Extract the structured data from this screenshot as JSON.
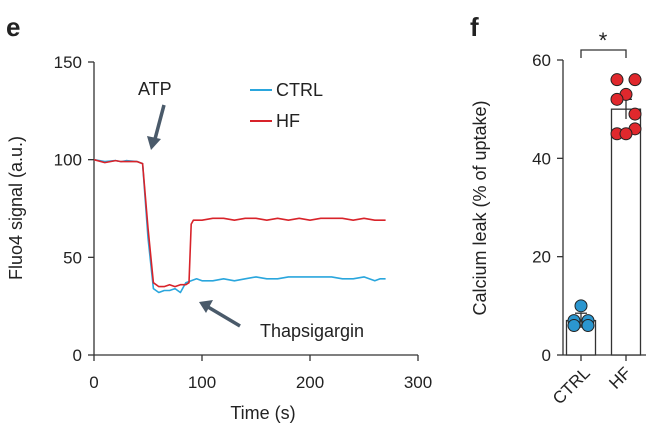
{
  "panels": {
    "left_letter": "e",
    "right_letter": "f"
  },
  "colors": {
    "ctrl": "#2aa6dd",
    "hf": "#d8232a",
    "ctrl_dot_fill": "#2b96cf",
    "hf_dot_fill": "#e0282d",
    "axis": "#333333",
    "arrow": "#4a5a6a"
  },
  "annotations": {
    "atp": "ATP",
    "thapsigargin": "Thapsigargin",
    "significance": "*"
  },
  "chart_data": [
    {
      "type": "line",
      "xlabel": "Time (s)",
      "ylabel": "Fluo4 signal (a.u.)",
      "xlim": [
        0,
        300
      ],
      "ylim": [
        0,
        150
      ],
      "xticks": [
        0,
        100,
        200,
        300
      ],
      "yticks": [
        0,
        50,
        100,
        150
      ],
      "legend_position": "top-right",
      "series": [
        {
          "name": "CTRL",
          "x": [
            0,
            10,
            20,
            25,
            30,
            40,
            45,
            50,
            55,
            60,
            65,
            70,
            75,
            80,
            85,
            90,
            95,
            100,
            110,
            120,
            130,
            140,
            150,
            160,
            170,
            180,
            190,
            200,
            210,
            220,
            230,
            240,
            250,
            260,
            265,
            270
          ],
          "y": [
            100,
            99,
            99.5,
            99,
            99.5,
            99,
            98,
            60,
            34,
            32,
            33,
            33,
            34,
            32,
            37,
            38,
            39,
            38,
            38,
            39,
            38,
            39,
            40,
            39,
            39,
            40,
            40,
            40,
            40,
            40,
            39,
            39,
            40,
            38,
            39,
            39
          ]
        },
        {
          "name": "HF",
          "x": [
            0,
            10,
            20,
            25,
            30,
            40,
            45,
            50,
            55,
            60,
            65,
            70,
            75,
            80,
            85,
            88,
            90,
            92,
            95,
            100,
            110,
            120,
            130,
            140,
            150,
            160,
            170,
            180,
            190,
            200,
            210,
            220,
            230,
            240,
            250,
            260,
            270
          ],
          "y": [
            100,
            98.5,
            99.5,
            99,
            99,
            99,
            98,
            65,
            37,
            35,
            35,
            36,
            35,
            36,
            36,
            37,
            67,
            69,
            69,
            69,
            70,
            70,
            69,
            70,
            70,
            69,
            70,
            69,
            70,
            69,
            70,
            70,
            70,
            69,
            70,
            69,
            69
          ]
        }
      ]
    },
    {
      "type": "bar",
      "ylabel": "Calcium leak (% of uptake)",
      "categories": [
        "CTRL",
        "HF"
      ],
      "values": [
        7,
        50
      ],
      "errors": [
        1.5,
        2
      ],
      "ylim": [
        0,
        60
      ],
      "yticks": [
        0,
        20,
        40,
        60
      ],
      "points": {
        "CTRL": [
          7,
          7,
          10,
          6,
          6
        ],
        "HF": [
          56,
          56,
          53,
          52,
          49,
          45,
          46,
          45
        ]
      }
    }
  ]
}
